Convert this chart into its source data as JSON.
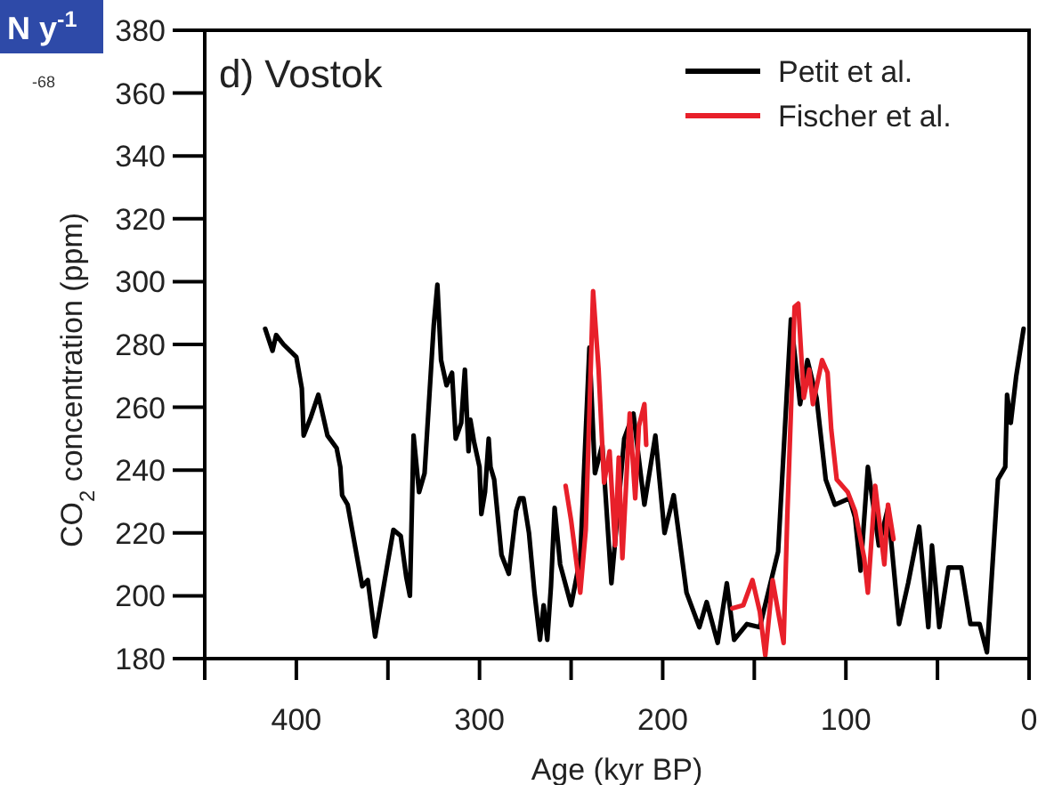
{
  "chart_data": {
    "type": "line",
    "title": "d) Vostok",
    "xlabel": "Age (kyr BP)",
    "ylabel": "CO$_{2}$ concentration (ppm)",
    "annotations": [
      "N y$^{-1}$",
      "-68"
    ],
    "xlim": [
      450,
      0
    ],
    "xticks": [
      {
        "value": 450,
        "label": null
      },
      400,
      {
        "value": 350,
        "label": null
      },
      300,
      {
        "value": 250,
        "label": null
      },
      200,
      {
        "value": 150,
        "label": null
      },
      100,
      {
        "value": 50,
        "label": null
      },
      0
    ],
    "ylim": [
      180,
      380
    ],
    "yticks": [
      180,
      200,
      220,
      240,
      260,
      280,
      300,
      320,
      340,
      360,
      380
    ],
    "grid": false,
    "legend": "top right",
    "line_style": "solid",
    "marker": "none",
    "series": [
      {
        "name": "Petit et al.",
        "color": "#000000",
        "x": [
          417,
          413,
          411,
          407,
          400,
          397,
          396,
          392,
          388,
          383,
          378,
          376,
          375,
          372,
          364,
          361,
          357,
          350,
          347,
          343,
          340,
          338,
          336,
          333,
          330,
          325,
          323,
          321,
          318,
          315,
          313,
          310,
          308,
          306,
          305,
          303,
          300,
          299,
          297,
          295,
          294,
          292,
          288,
          284,
          280,
          278,
          276,
          273,
          270,
          267,
          265,
          263,
          261,
          259,
          256,
          250,
          245,
          240,
          237,
          233,
          228,
          221,
          216,
          210,
          204,
          199,
          194,
          187,
          180,
          176,
          170,
          165,
          161,
          154,
          147,
          137,
          130,
          125,
          121,
          116,
          111,
          106,
          98,
          95,
          92,
          88,
          82,
          77,
          71,
          66,
          60,
          55,
          53,
          49,
          44,
          37,
          32,
          27,
          23,
          17,
          13,
          12,
          10,
          7,
          3
        ],
        "values": [
          285,
          278,
          283,
          280,
          276,
          266,
          251,
          257,
          264,
          251,
          247,
          241,
          232,
          229,
          203,
          205,
          187,
          211,
          221,
          219,
          206,
          200,
          251,
          233,
          239,
          286,
          299,
          275,
          267,
          271,
          250,
          255,
          272,
          246,
          256,
          249,
          241,
          226,
          233,
          250,
          241,
          237,
          213,
          207,
          227,
          231,
          231,
          220,
          201,
          186,
          197,
          186,
          203,
          228,
          210,
          197,
          212,
          279,
          239,
          248,
          204,
          250,
          258,
          229,
          251,
          220,
          232,
          201,
          190,
          198,
          185,
          204,
          186,
          191,
          190,
          214,
          288,
          261,
          275,
          263,
          237,
          229,
          231,
          225,
          208,
          241,
          216,
          228,
          191,
          204,
          222,
          190,
          216,
          190,
          209,
          209,
          191,
          191,
          182,
          237,
          241,
          264,
          255,
          270,
          285
        ]
      },
      {
        "name": "Fischer et al.",
        "color": "#e8202a",
        "x": [
          253,
          250,
          245,
          242,
          238,
          235,
          232,
          229,
          226,
          224,
          222,
          218,
          215,
          213,
          210,
          209,
          190,
          162,
          156,
          151,
          147,
          144,
          140,
          134,
          132,
          128,
          126,
          123,
          120,
          118,
          113,
          110,
          108,
          105,
          99,
          95,
          90,
          88,
          84,
          79,
          77,
          74
        ],
        "values": [
          235,
          224,
          201,
          221,
          297,
          272,
          236,
          246,
          216,
          244,
          212,
          258,
          231,
          254,
          261,
          248,
          null,
          196,
          197,
          205,
          195,
          181,
          205,
          185,
          225,
          292,
          293,
          263,
          272,
          261,
          275,
          271,
          253,
          237,
          233,
          227,
          212,
          201,
          235,
          210,
          229,
          218
        ]
      }
    ]
  }
}
